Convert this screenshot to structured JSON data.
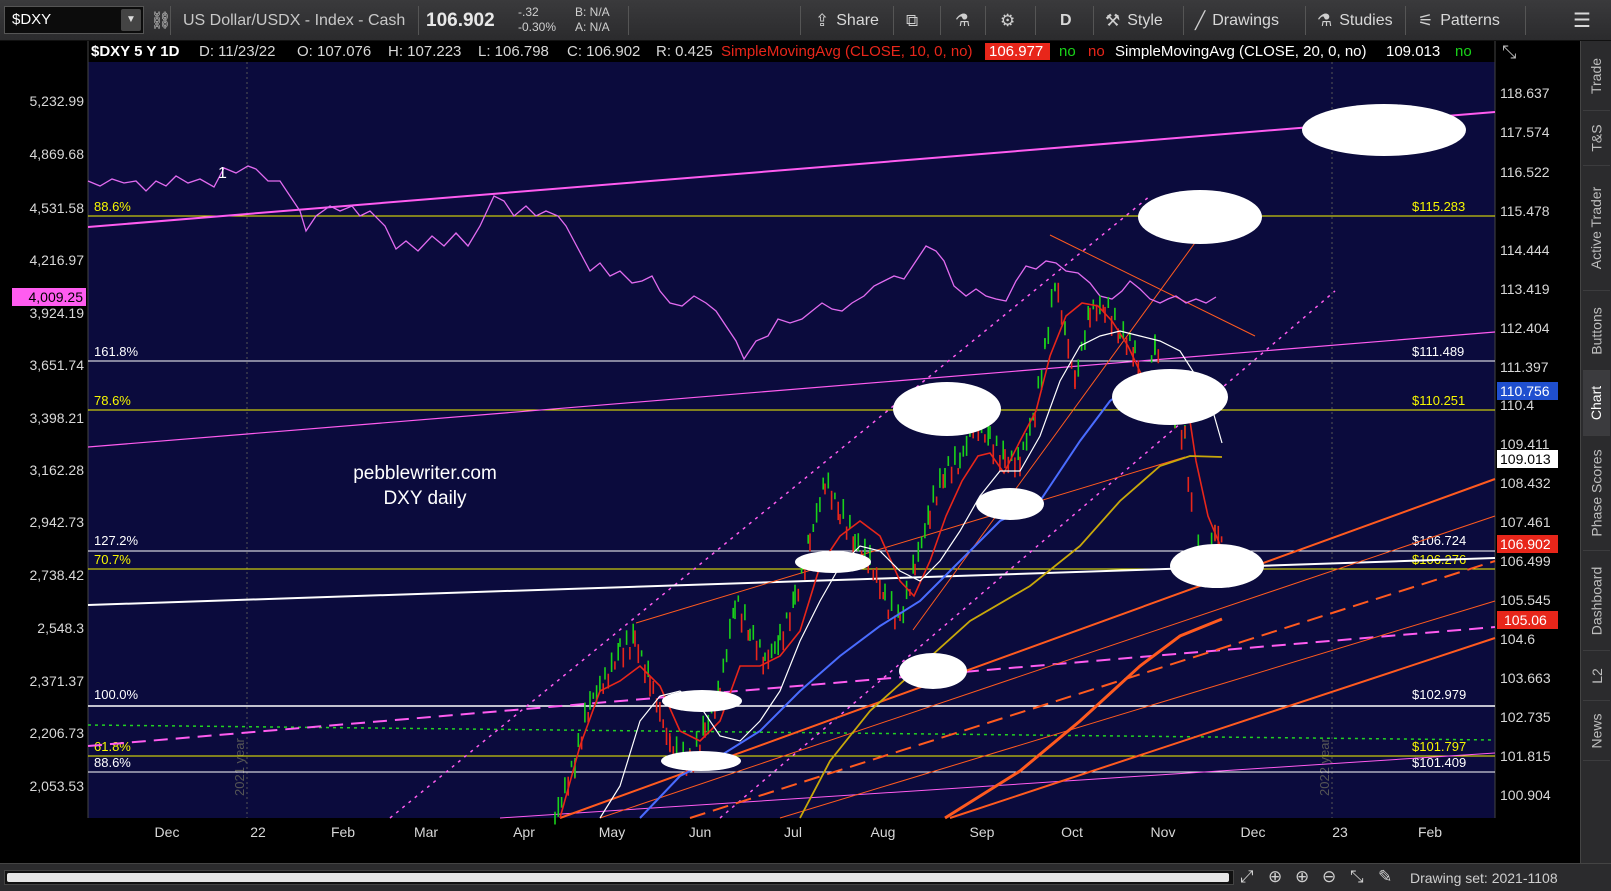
{
  "toolbar": {
    "symbol": "$DXY",
    "description": "US Dollar/USDX - Index - Cash",
    "last_price": "106.902",
    "change": "-.32",
    "change_pct": "-0.30%",
    "bid": "B: N/A",
    "ask": "A: N/A",
    "share": "Share",
    "aggregation": "D",
    "style": "Style",
    "drawings": "Drawings",
    "studies": "Studies",
    "patterns": "Patterns"
  },
  "header": {
    "title": "$DXY 5 Y 1D",
    "date": "D: 11/23/22",
    "open": "O: 107.076",
    "high": "H: 107.223",
    "low": "L: 106.798",
    "close": "C: 106.902",
    "range": "R: 0.425",
    "sma10_label": "SimpleMovingAvg (CLOSE, 10, 0, no)",
    "sma10_value": "106.977",
    "no1": "no",
    "no2": "no",
    "sma20_label": "SimpleMovingAvg (CLOSE, 20, 0, no)",
    "sma20_value": "109.013",
    "no3": "no"
  },
  "left_axis": [
    "5,232.99",
    "4,869.68",
    "4,531.58",
    "4,216.97",
    "3,924.19",
    "3,651.74",
    "3,398.21",
    "3,162.28",
    "2,942.73",
    "2,738.42",
    "2,548.3",
    "2,371.37",
    "2,206.73",
    "2,053.53"
  ],
  "left_badge": "4,009.25",
  "right_axis": [
    "118.637",
    "117.574",
    "116.522",
    "115.478",
    "114.444",
    "113.419",
    "112.404",
    "111.397",
    "110.4",
    "109.411",
    "108.432",
    "107.461",
    "106.499",
    "105.545",
    "104.6",
    "103.663",
    "102.735",
    "101.815",
    "100.904"
  ],
  "right_badges": {
    "blue": "110.756",
    "white": "109.013",
    "red_last": "106.902",
    "red2": "105.06"
  },
  "x_axis": [
    "Dec",
    "22",
    "Feb",
    "Mar",
    "Apr",
    "May",
    "Jun",
    "Jul",
    "Aug",
    "Sep",
    "Oct",
    "Nov",
    "Dec",
    "23",
    "Feb"
  ],
  "year_markers": [
    "2021 year",
    "2022 year"
  ],
  "fib_levels": [
    {
      "left": "88.6%",
      "right": "$115.283"
    },
    {
      "left": "161.8%",
      "right": "$111.489"
    },
    {
      "left": "78.6%",
      "right": "$110.251"
    },
    {
      "left": "127.2%",
      "right": "$106.724"
    },
    {
      "left": "70.7%",
      "right": "$106.276"
    },
    {
      "left": "100.0%",
      "right": "$102.979"
    },
    {
      "left": "61.8%",
      "right": "$101.797"
    },
    {
      "left": "88.6%",
      "right": "$101.409"
    }
  ],
  "annotations": {
    "watermark_line1": "pebblewriter.com",
    "watermark_line2": "DXY daily",
    "wave_label": "1"
  },
  "sidebar_tabs": [
    "Trade",
    "T&S",
    "Active Trader",
    "Buttons",
    "Chart",
    "Phase Scores",
    "Dashboard",
    "L2",
    "News"
  ],
  "bottom": {
    "drawing_set": "Drawing set: 2021-1108"
  },
  "colors": {
    "plot_bg": "#0b0b3d",
    "sma10": "#e8261a",
    "magenta": "#ff5cf0",
    "fib_yellow": "#f7f700",
    "badge_red": "#e8261a",
    "badge_blue": "#1f4fcf"
  }
}
